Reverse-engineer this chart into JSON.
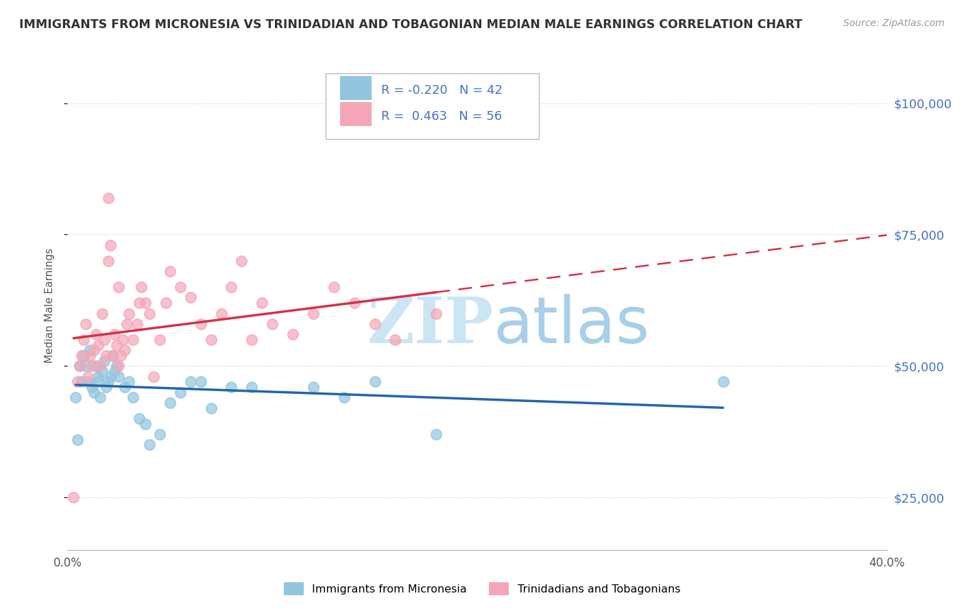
{
  "title": "IMMIGRANTS FROM MICRONESIA VS TRINIDADIAN AND TOBAGONIAN MEDIAN MALE EARNINGS CORRELATION CHART",
  "source": "Source: ZipAtlas.com",
  "ylabel": "Median Male Earnings",
  "blue_label": "Immigrants from Micronesia",
  "pink_label": "Trinidadians and Tobagonians",
  "blue_R": -0.22,
  "blue_N": 42,
  "pink_R": 0.463,
  "pink_N": 56,
  "blue_color": "#92c5de",
  "pink_color": "#f4a6b8",
  "blue_line_color": "#2166ac",
  "pink_line_color": "#d6304a",
  "pink_dash_color": "#d6304a",
  "xlim": [
    0.0,
    0.4
  ],
  "ylim": [
    15000,
    108000
  ],
  "yticks": [
    25000,
    50000,
    75000,
    100000
  ],
  "ytick_labels": [
    "$25,000",
    "$50,000",
    "$75,000",
    "$100,000"
  ],
  "xticks": [
    0.0,
    0.05,
    0.1,
    0.15,
    0.2,
    0.25,
    0.3,
    0.35,
    0.4
  ],
  "blue_points_x": [
    0.004,
    0.006,
    0.007,
    0.008,
    0.009,
    0.01,
    0.011,
    0.012,
    0.013,
    0.014,
    0.015,
    0.015,
    0.016,
    0.017,
    0.018,
    0.019,
    0.02,
    0.021,
    0.022,
    0.023,
    0.024,
    0.025,
    0.028,
    0.03,
    0.032,
    0.035,
    0.038,
    0.04,
    0.045,
    0.05,
    0.055,
    0.06,
    0.065,
    0.07,
    0.08,
    0.09,
    0.12,
    0.135,
    0.15,
    0.18,
    0.32,
    0.005
  ],
  "blue_points_y": [
    44000,
    50000,
    47000,
    52000,
    50000,
    47000,
    53000,
    46000,
    45000,
    50000,
    48000,
    47000,
    44000,
    49000,
    51000,
    46000,
    47000,
    48000,
    52000,
    49000,
    50000,
    48000,
    46000,
    47000,
    44000,
    40000,
    39000,
    35000,
    37000,
    43000,
    45000,
    47000,
    47000,
    42000,
    46000,
    46000,
    46000,
    44000,
    47000,
    37000,
    47000,
    36000
  ],
  "pink_points_x": [
    0.003,
    0.005,
    0.006,
    0.007,
    0.008,
    0.009,
    0.01,
    0.011,
    0.012,
    0.013,
    0.014,
    0.015,
    0.016,
    0.017,
    0.018,
    0.019,
    0.02,
    0.021,
    0.022,
    0.023,
    0.024,
    0.025,
    0.026,
    0.027,
    0.028,
    0.029,
    0.03,
    0.032,
    0.034,
    0.035,
    0.036,
    0.038,
    0.04,
    0.042,
    0.045,
    0.048,
    0.05,
    0.055,
    0.06,
    0.065,
    0.07,
    0.075,
    0.08,
    0.085,
    0.09,
    0.095,
    0.1,
    0.11,
    0.12,
    0.13,
    0.14,
    0.15,
    0.16,
    0.18,
    0.02,
    0.025
  ],
  "pink_points_y": [
    25000,
    47000,
    50000,
    52000,
    55000,
    58000,
    48000,
    52000,
    50000,
    53000,
    56000,
    54000,
    50000,
    60000,
    55000,
    52000,
    82000,
    73000,
    52000,
    56000,
    54000,
    50000,
    52000,
    55000,
    53000,
    58000,
    60000,
    55000,
    58000,
    62000,
    65000,
    62000,
    60000,
    48000,
    55000,
    62000,
    68000,
    65000,
    63000,
    58000,
    55000,
    60000,
    65000,
    70000,
    55000,
    62000,
    58000,
    56000,
    60000,
    65000,
    62000,
    58000,
    55000,
    60000,
    70000,
    65000
  ]
}
